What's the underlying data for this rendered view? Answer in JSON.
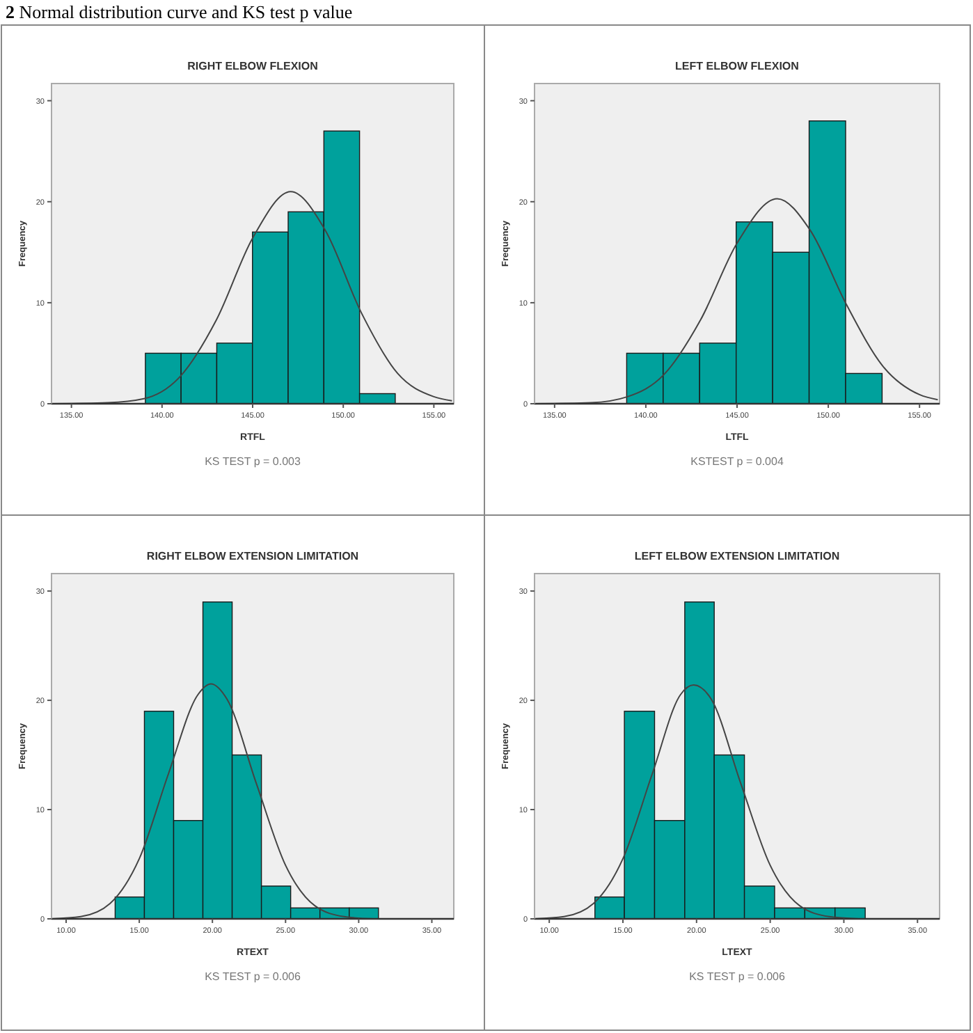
{
  "chart_data": [
    {
      "type": "histogram",
      "title": "RIGHT ELBOW FLEXION",
      "xlabel": "RTFL",
      "ylabel": "Frequency",
      "annotations": [
        "2 Normal distribution curve and KS test p value",
        "KS TEST  p = 0.003"
      ],
      "xlim": [
        133.9,
        156.1
      ],
      "xticks": [
        {
          "value": 135,
          "label": "135.00"
        },
        {
          "value": 140,
          "label": "140.00"
        },
        {
          "value": 145,
          "label": "145.00"
        },
        {
          "value": 150,
          "label": "150.00"
        },
        {
          "value": 155,
          "label": "155.00"
        }
      ],
      "ylim": [
        0,
        31.7
      ],
      "yticks": [
        0,
        10,
        20,
        30
      ],
      "bins": [
        139.08,
        141.05,
        143.02,
        144.99,
        146.96,
        148.93,
        150.9,
        152.87
      ],
      "series": [
        {
          "color": "#00a19c",
          "values": [
            5,
            5,
            6,
            17,
            19,
            27,
            1
          ]
        },
        {
          "type": "line",
          "color": "#444444",
          "x": [
            134,
            137,
            139,
            141,
            143,
            145,
            147.1,
            149,
            151,
            153,
            155,
            156
          ],
          "values": [
            0,
            0.1,
            0.5,
            2.7,
            8.3,
            16.4,
            21,
            17.2,
            9,
            3,
            0.7,
            0.3
          ]
        }
      ]
    },
    {
      "type": "histogram",
      "title": "LEFT  ELBOW FLEXION",
      "xlabel": "LTFL",
      "ylabel": "Frequency",
      "annotations": [
        "KSTEST p = 0.004"
      ],
      "xlim": [
        133.9,
        156.1
      ],
      "xticks": [
        {
          "value": 135,
          "label": "135.00"
        },
        {
          "value": 140,
          "label": "140.00"
        },
        {
          "value": 145,
          "label": "145.00"
        },
        {
          "value": 150,
          "label": "150.00"
        },
        {
          "value": 155,
          "label": "155.00"
        }
      ],
      "ylim": [
        0,
        31.7
      ],
      "yticks": [
        0,
        10,
        20,
        30
      ],
      "bins": [
        138.95,
        140.95,
        142.95,
        144.95,
        146.95,
        148.95,
        150.95,
        152.95
      ],
      "series": [
        {
          "color": "#00a19c",
          "values": [
            5,
            5,
            6,
            18,
            15,
            28,
            3
          ]
        },
        {
          "type": "line",
          "color": "#444444",
          "x": [
            134,
            137,
            139,
            141,
            143,
            145,
            147.2,
            149,
            151,
            153,
            155,
            156
          ],
          "values": [
            0,
            0.1,
            0.7,
            2.9,
            8.3,
            15.9,
            20.3,
            17.2,
            9.8,
            3.7,
            0.9,
            0.4
          ]
        }
      ]
    },
    {
      "type": "histogram",
      "title": "RIGHT ELBOW EXTENSION LIMITATION",
      "xlabel": "RTEXT",
      "ylabel": "Frequency",
      "annotations": [
        "KS TEST p = 0.006"
      ],
      "xlim": [
        9,
        36.5
      ],
      "xticks": [
        {
          "value": 10,
          "label": "10.00"
        },
        {
          "value": 15,
          "label": "15.00"
        },
        {
          "value": 20,
          "label": "20.00"
        },
        {
          "value": 25,
          "label": "25.00"
        },
        {
          "value": 30,
          "label": "30.00"
        },
        {
          "value": 35,
          "label": "35.00"
        }
      ],
      "ylim": [
        0,
        31.6
      ],
      "yticks": [
        0,
        10,
        20,
        30
      ],
      "bins": [
        13.35,
        15.35,
        17.35,
        19.35,
        21.35,
        23.35,
        25.35,
        27.35,
        29.35,
        31.35
      ],
      "series": [
        {
          "color": "#00a19c",
          "values": [
            2,
            19,
            9,
            29,
            15,
            3,
            1,
            1,
            1
          ]
        },
        {
          "type": "line",
          "color": "#444444",
          "x": [
            9,
            11,
            13,
            15,
            17,
            19,
            19.9,
            21,
            23,
            25,
            27,
            29,
            31
          ],
          "values": [
            0,
            0.2,
            1.4,
            5.5,
            13.3,
            20.5,
            21.5,
            20.1,
            12.4,
            4.9,
            1.2,
            0.2,
            0
          ]
        }
      ]
    },
    {
      "type": "histogram",
      "title": "LEFT ELBOW EXTENSION LIMITATION",
      "xlabel": "LTEXT",
      "ylabel": "Frequency",
      "annotations": [
        "KS TEST p = 0.006"
      ],
      "xlim": [
        9,
        36.5
      ],
      "xticks": [
        {
          "value": 10,
          "label": "10.00"
        },
        {
          "value": 15,
          "label": "15.00"
        },
        {
          "value": 20,
          "label": "20.00"
        },
        {
          "value": 25,
          "label": "25.00"
        },
        {
          "value": 30,
          "label": "30.00"
        },
        {
          "value": 35,
          "label": "35.00"
        }
      ],
      "ylim": [
        0,
        31.6
      ],
      "yticks": [
        0,
        10,
        20,
        30
      ],
      "bins": [
        13.1,
        15.1,
        17.15,
        19.2,
        21.2,
        23.25,
        25.3,
        27.35,
        29.4,
        31.45
      ],
      "series": [
        {
          "color": "#00a19c",
          "values": [
            2,
            19,
            9,
            29,
            15,
            3,
            1,
            1,
            1
          ]
        },
        {
          "type": "line",
          "color": "#444444",
          "x": [
            9,
            11,
            13,
            15,
            17,
            18.9,
            19.8,
            21,
            23,
            25,
            27,
            29,
            31
          ],
          "values": [
            0,
            0.2,
            1.4,
            5.5,
            13.3,
            20.5,
            21.4,
            20.1,
            12.4,
            4.9,
            1.2,
            0.2,
            0
          ]
        }
      ]
    }
  ]
}
